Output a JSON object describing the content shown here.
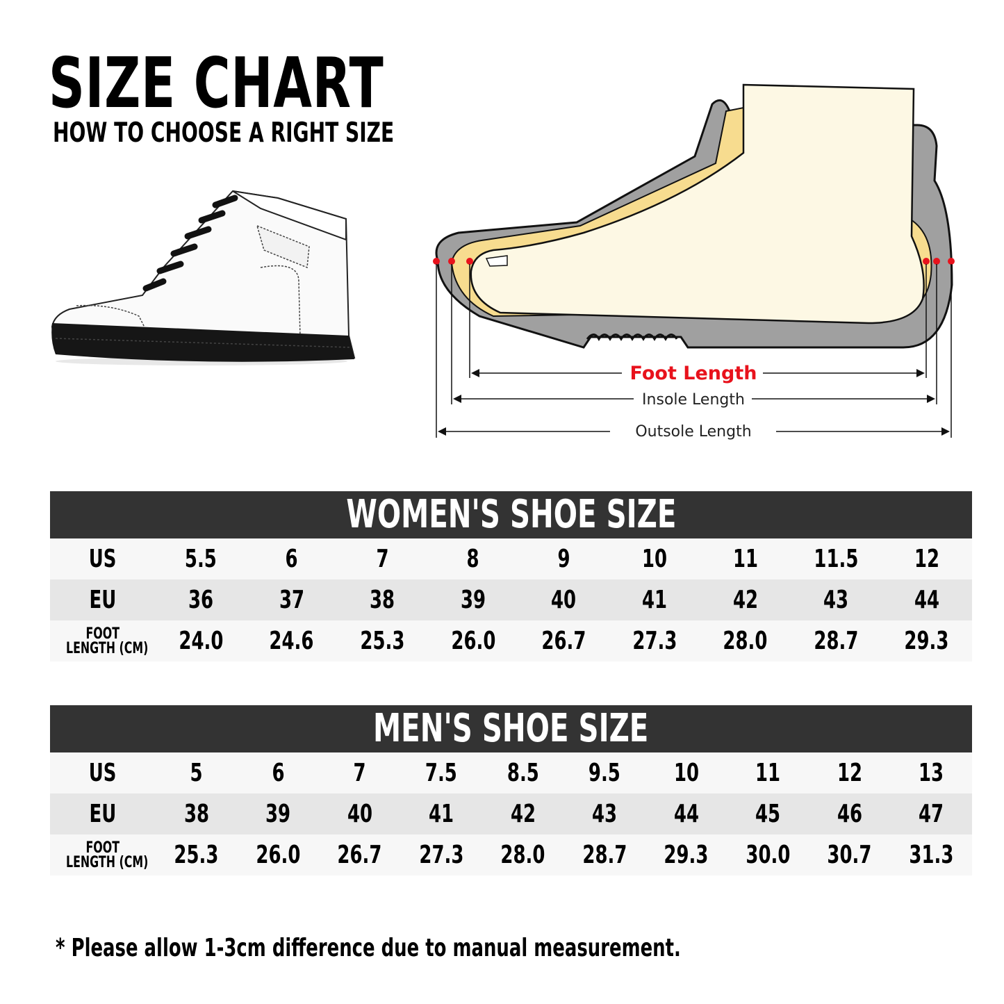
{
  "header": {
    "title": "SIZE CHART",
    "subtitle": "HOW TO CHOOSE A RIGHT SIZE"
  },
  "diagram": {
    "foot_length": "Foot Length",
    "insole_length": "Insole Length",
    "outsole_length": "Outsole Length",
    "accent_color": "#e8121c"
  },
  "women": {
    "title": "WOMEN'S SHOE SIZE",
    "row_labels": {
      "us": "US",
      "eu": "EU",
      "foot_line1": "FOOT",
      "foot_line2": "LENGTH (CM)"
    },
    "us": [
      "5.5",
      "6",
      "7",
      "8",
      "9",
      "10",
      "11",
      "11.5",
      "12"
    ],
    "eu": [
      "36",
      "37",
      "38",
      "39",
      "40",
      "41",
      "42",
      "43",
      "44"
    ],
    "foot_length_cm": [
      "24.0",
      "24.6",
      "25.3",
      "26.0",
      "26.7",
      "27.3",
      "28.0",
      "28.7",
      "29.3"
    ]
  },
  "men": {
    "title": "MEN'S SHOE SIZE",
    "row_labels": {
      "us": "US",
      "eu": "EU",
      "foot_line1": "FOOT",
      "foot_line2": "LENGTH (CM)"
    },
    "us": [
      "5",
      "6",
      "7",
      "7.5",
      "8.5",
      "9.5",
      "10",
      "11",
      "12",
      "13"
    ],
    "eu": [
      "38",
      "39",
      "40",
      "41",
      "42",
      "43",
      "44",
      "45",
      "46",
      "47"
    ],
    "foot_length_cm": [
      "25.3",
      "26.0",
      "26.7",
      "27.3",
      "28.0",
      "28.7",
      "29.3",
      "30.0",
      "30.7",
      "31.3"
    ]
  },
  "footnote": "* Please allow 1-3cm difference due to manual measurement.",
  "colors": {
    "header_bg": "#333333",
    "row_light": "#f7f7f7",
    "row_dark": "#e6e6e6"
  }
}
